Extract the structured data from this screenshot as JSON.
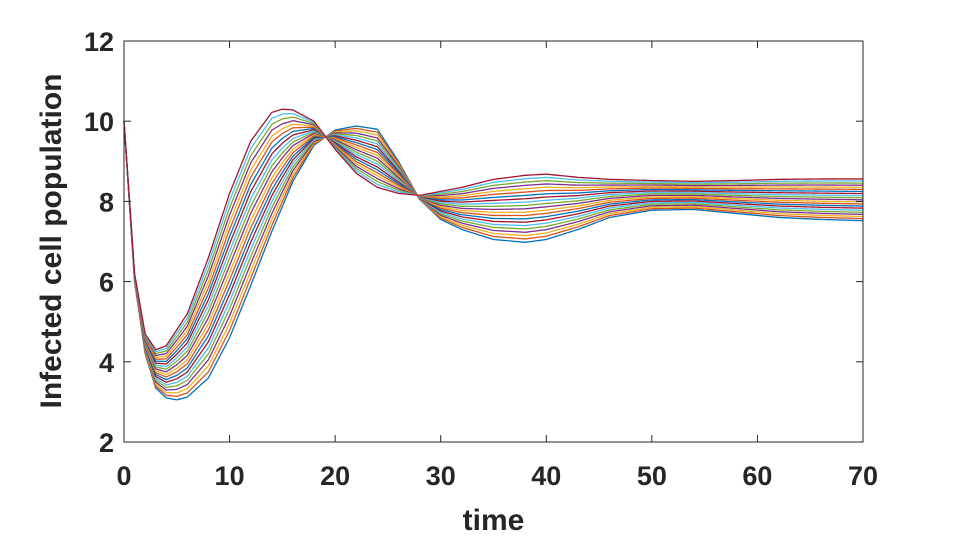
{
  "chart_data": {
    "type": "line",
    "title": "",
    "xlabel": "time",
    "ylabel": "Infected cell population",
    "xlim": [
      0,
      70
    ],
    "ylim": [
      2,
      12
    ],
    "xticks": [
      0,
      10,
      20,
      30,
      40,
      50,
      60,
      70
    ],
    "yticks": [
      2,
      4,
      6,
      8,
      10,
      12
    ],
    "grid": false,
    "legend": "none",
    "series_count": 21,
    "colors": [
      "#0072BD",
      "#D95319",
      "#EDB120",
      "#7E2F8E",
      "#77AC30",
      "#4DBEEE",
      "#A2142F"
    ],
    "series_note": "family of curves interpolating between the two extreme curves below",
    "curve_first": {
      "x": [
        0,
        1,
        2,
        3,
        4,
        5,
        6,
        8,
        10,
        12,
        14,
        16,
        18,
        20,
        22,
        24,
        26,
        28,
        30,
        32,
        35,
        38,
        40,
        43,
        46,
        50,
        54,
        58,
        62,
        66,
        70
      ],
      "y": [
        10,
        6.0,
        4.2,
        3.35,
        3.1,
        3.05,
        3.12,
        3.6,
        4.6,
        5.9,
        7.25,
        8.5,
        9.4,
        9.78,
        9.88,
        9.8,
        9.0,
        8.05,
        7.55,
        7.3,
        7.05,
        6.98,
        7.05,
        7.3,
        7.6,
        7.78,
        7.8,
        7.7,
        7.6,
        7.55,
        7.52
      ]
    },
    "curve_last": {
      "x": [
        0,
        1,
        2,
        3,
        4,
        6,
        8,
        10,
        12,
        14,
        15,
        16,
        18,
        20,
        22,
        24,
        26,
        28,
        30,
        32,
        35,
        38,
        40,
        43,
        46,
        50,
        54,
        58,
        62,
        66,
        70
      ],
      "y": [
        10,
        6.2,
        4.7,
        4.3,
        4.4,
        5.2,
        6.6,
        8.2,
        9.5,
        10.22,
        10.3,
        10.28,
        10.0,
        9.3,
        8.7,
        8.35,
        8.2,
        8.15,
        8.25,
        8.35,
        8.55,
        8.65,
        8.68,
        8.6,
        8.55,
        8.52,
        8.5,
        8.52,
        8.55,
        8.56,
        8.56
      ]
    }
  }
}
